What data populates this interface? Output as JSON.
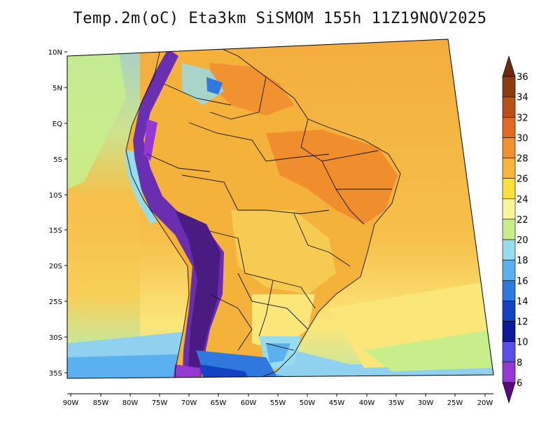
{
  "title": "Temp.2m(oC) Eta3km SiSMOM 155h 11Z19NOV2025",
  "lat_labels": [
    "10N",
    "5N",
    "EQ",
    "5S",
    "10S",
    "15S",
    "20S",
    "25S",
    "30S",
    "35S"
  ],
  "lon_labels": [
    "90W",
    "85W",
    "80W",
    "75W",
    "70W",
    "65W",
    "60W",
    "55W",
    "50W",
    "45W",
    "40W",
    "35W",
    "30W",
    "25W",
    "20W"
  ],
  "colorbar": {
    "labels": [
      "36",
      "34",
      "32",
      "30",
      "28",
      "26",
      "24",
      "22",
      "20",
      "18",
      "16",
      "14",
      "12",
      "10",
      "8",
      "6"
    ],
    "colors": [
      "#6b2a10",
      "#8c3a12",
      "#b8501a",
      "#e06a25",
      "#f0902e",
      "#f6b638",
      "#fbdf3c",
      "#fbf59a",
      "#c8ee8c",
      "#96dcee",
      "#5bb0f0",
      "#2f78de",
      "#1442c0",
      "#0a1a9a",
      "#5a4ee6",
      "#9538d4",
      "#5a0a7a"
    ]
  },
  "palette": {
    "ocean_warm": "#f2a93b",
    "ocean_mild": "#f6cd55",
    "ocean_cool": "#fbe67a",
    "ocean_cold": "#bfe7a0",
    "ocean_colder": "#8fd1ee",
    "land_hot": "#ef8a2e",
    "land_warm": "#f4b23a",
    "andes_cold": "#4a1b80",
    "andes_very_cold": "#6a2fb0",
    "coast_line": "#000000"
  }
}
